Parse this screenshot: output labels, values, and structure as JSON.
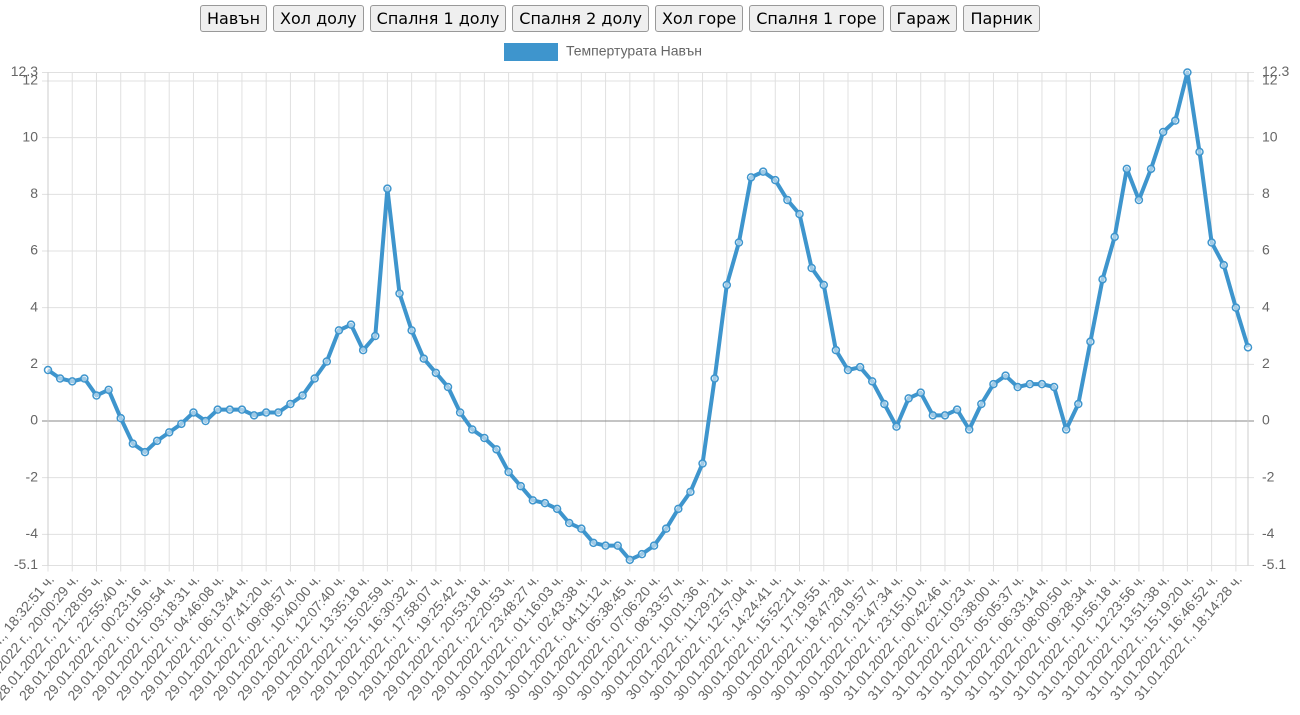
{
  "buttons": [
    "Навън",
    "Хол долу",
    "Спалня 1 долу",
    "Спалня 2 долу",
    "Хол горе",
    "Спалня 1 горе",
    "Гараж",
    "Парник"
  ],
  "chart_data": {
    "type": "line",
    "categories": [
      "28.01.2022 г., 18:32:51 ч.",
      null,
      "28.01.2022 г., 20:00:29 ч.",
      null,
      "28.01.2022 г., 21:28:05 ч.",
      null,
      "28.01.2022 г., 22:55:40 ч.",
      null,
      "29.01.2022 г., 00:23:16 ч.",
      null,
      "29.01.2022 г., 01:50:54 ч.",
      null,
      "29.01.2022 г., 03:18:31 ч.",
      null,
      "29.01.2022 г., 04:46:08 ч.",
      null,
      "29.01.2022 г., 06:13:44 ч.",
      null,
      "29.01.2022 г., 07:41:20 ч.",
      null,
      "29.01.2022 г., 09:08:57 ч.",
      null,
      "29.01.2022 г., 10:40:00 ч.",
      null,
      "29.01.2022 г., 12:07:40 ч.",
      null,
      "29.01.2022 г., 13:35:18 ч.",
      null,
      "29.01.2022 г., 15:02:59 ч.",
      null,
      "29.01.2022 г., 16:30:32 ч.",
      null,
      "29.01.2022 г., 17:58:07 ч.",
      null,
      "29.01.2022 г., 19:25:42 ч.",
      null,
      "29.01.2022 г., 20:53:18 ч.",
      null,
      "29.01.2022 г., 22:20:53 ч.",
      null,
      "29.01.2022 г., 23:48:27 ч.",
      null,
      "30.01.2022 г., 01:16:03 ч.",
      null,
      "30.01.2022 г., 02:43:38 ч.",
      null,
      "30.01.2022 г., 04:11:12 ч.",
      null,
      "30.01.2022 г., 05:38:45 ч.",
      null,
      "30.01.2022 г., 07:06:20 ч.",
      null,
      "30.01.2022 г., 08:33:57 ч.",
      null,
      "30.01.2022 г., 10:01:36 ч.",
      null,
      "30.01.2022 г., 11:29:21 ч.",
      null,
      "30.01.2022 г., 12:57:04 ч.",
      null,
      "30.01.2022 г., 14:24:41 ч.",
      null,
      "30.01.2022 г., 15:52:21 ч.",
      null,
      "30.01.2022 г., 17:19:55 ч.",
      null,
      "30.01.2022 г., 18:47:28 ч.",
      null,
      "30.01.2022 г., 20:19:57 ч.",
      null,
      "30.01.2022 г., 21:47:34 ч.",
      null,
      "30.01.2022 г., 23:15:10 ч.",
      null,
      "31.01.2022 г., 00:42:46 ч.",
      null,
      "31.01.2022 г., 02:10:23 ч.",
      null,
      "31.01.2022 г., 03:38:00 ч.",
      null,
      "31.01.2022 г., 05:05:37 ч.",
      null,
      "31.01.2022 г., 06:33:14 ч.",
      null,
      "31.01.2022 г., 08:00:50 ч.",
      null,
      "31.01.2022 г., 09:28:34 ч.",
      null,
      "31.01.2022 г., 10:56:18 ч.",
      null,
      "31.01.2022 г., 12:23:56 ч.",
      null,
      "31.01.2022 г., 13:51:38 ч.",
      null,
      "31.01.2022 г., 15:19:20 ч.",
      null,
      "31.01.2022 г., 16:46:52 ч.",
      null,
      "31.01.2022 г., 18:14:28 ч.",
      null
    ],
    "series": [
      {
        "name": "Темпертурата Навън",
        "color": "#3e95cd",
        "values": [
          1.8,
          1.5,
          1.4,
          1.5,
          0.9,
          1.1,
          0.1,
          -0.8,
          -1.1,
          -0.7,
          -0.4,
          -0.1,
          0.3,
          0.0,
          0.4,
          0.4,
          0.4,
          0.2,
          0.3,
          0.3,
          0.6,
          0.9,
          1.5,
          2.1,
          3.2,
          3.4,
          2.5,
          3.0,
          8.2,
          4.5,
          3.2,
          2.2,
          1.7,
          1.2,
          0.3,
          -0.3,
          -0.6,
          -1.0,
          -1.8,
          -2.3,
          -2.8,
          -2.9,
          -3.1,
          -3.6,
          -3.8,
          -4.3,
          -4.4,
          -4.4,
          -4.9,
          -4.7,
          -4.4,
          -3.8,
          -3.1,
          -2.5,
          -1.5,
          1.5,
          4.8,
          6.3,
          8.6,
          8.8,
          8.5,
          7.8,
          7.3,
          5.4,
          4.8,
          2.5,
          1.8,
          1.9,
          1.4,
          0.6,
          -0.2,
          0.8,
          1.0,
          0.2,
          0.2,
          0.4,
          -0.3,
          0.6,
          1.3,
          1.6,
          1.2,
          1.3,
          1.3,
          1.2,
          -0.3,
          0.6,
          2.8,
          5.0,
          6.5,
          8.9,
          7.8,
          8.9,
          10.2,
          10.6,
          12.3,
          9.5,
          6.3,
          5.5,
          4.0,
          2.6
        ]
      }
    ],
    "ylim": [
      -5.1,
      12.3
    ],
    "yticks": [
      -5.1,
      -4,
      -2,
      0,
      2,
      4,
      6,
      8,
      10,
      12,
      12.3
    ],
    "grid": true
  }
}
